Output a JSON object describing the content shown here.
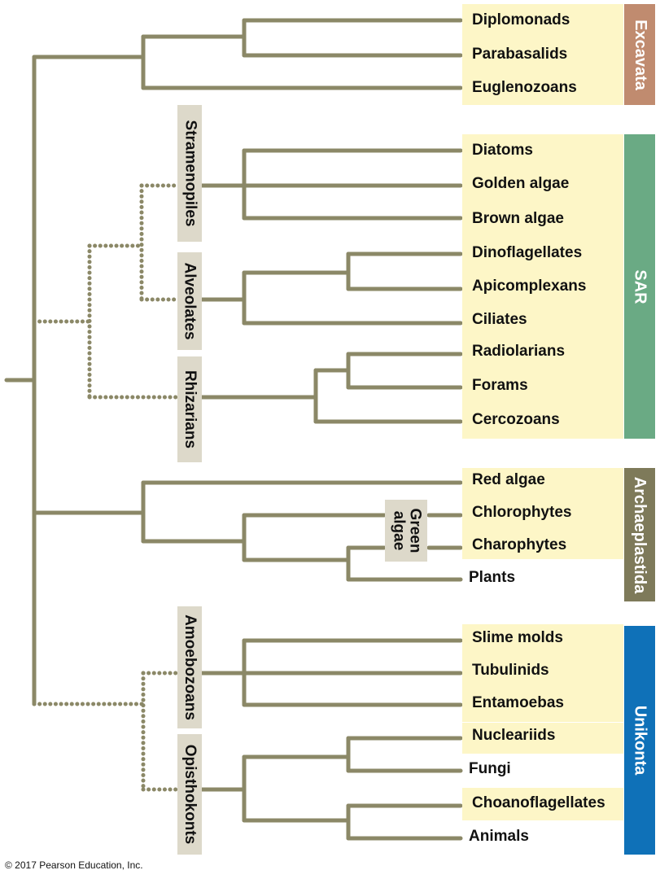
{
  "taxa": [
    "Diplomonads",
    "Parabasalids",
    "Euglenozoans",
    "Diatoms",
    "Golden algae",
    "Brown algae",
    "Dinoflagellates",
    "Apicomplexans",
    "Ciliates",
    "Radiolarians",
    "Forams",
    "Cercozoans",
    "Red algae",
    "Chlorophytes",
    "Charophytes",
    "Plants",
    "Slime molds",
    "Tubulinids",
    "Entamoebas",
    "Nucleariids",
    "Fungi",
    "Choanoflagellates",
    "Animals"
  ],
  "subgroups": {
    "stramenopiles": "Stramenopiles",
    "alveolates": "Alveolates",
    "rhizarians": "Rhizarians",
    "green_algae": "Green\nalgae",
    "amoebozoans": "Amoebozoans",
    "opisthokonts": "Opisthokonts"
  },
  "supergroups": [
    {
      "label": "Excavata",
      "color": "#c08b6f"
    },
    {
      "label": "SAR",
      "color": "#6aaa84"
    },
    {
      "label": "Archaeplastida",
      "color": "#7e7a5a"
    },
    {
      "label": "Unikonta",
      "color": "#0f71b8"
    }
  ],
  "colors": {
    "branch": "#8b8867",
    "highlight": "#fdf6c7",
    "subgroup_box": "#ddd9ca"
  },
  "copyright": "© 2017 Pearson Education, Inc."
}
